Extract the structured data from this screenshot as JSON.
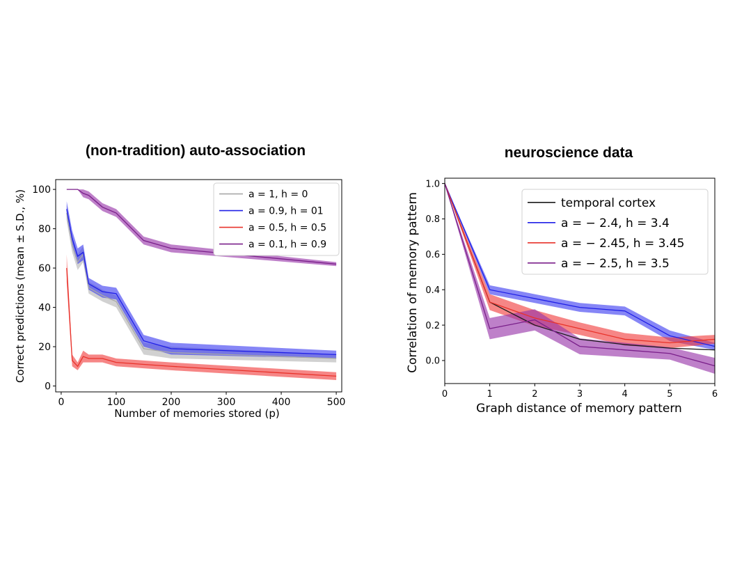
{
  "chart_data": [
    {
      "type": "line",
      "title": "(non-tradition) auto-association",
      "xlabel": "Number of memories stored (p)",
      "ylabel": "Correct predictions (mean ± S.D., %)",
      "xlim": [
        -10,
        510
      ],
      "ylim": [
        -3,
        105
      ],
      "xticks": [
        0,
        100,
        200,
        300,
        400,
        500
      ],
      "yticks": [
        0,
        20,
        40,
        60,
        80,
        100
      ],
      "legend_position": "top-right",
      "grid": false,
      "series": [
        {
          "name": "a = 1, h = 0",
          "color": "#a8a8a8",
          "band_color": "#b4b4b4",
          "x": [
            10,
            20,
            30,
            40,
            50,
            75,
            100,
            150,
            200,
            500
          ],
          "y": [
            88,
            72,
            63,
            67,
            50,
            46,
            43,
            19,
            17,
            14
          ],
          "sd": [
            4,
            4,
            4,
            4,
            3,
            3,
            3,
            3,
            3,
            2
          ]
        },
        {
          "name": "a = 0.9, h = 01",
          "color": "#1f1fe6",
          "band_color": "#3c3cf0",
          "x": [
            10,
            20,
            30,
            40,
            50,
            75,
            100,
            150,
            200,
            500
          ],
          "y": [
            90,
            75,
            66,
            68,
            52,
            48,
            47,
            23,
            19,
            16
          ],
          "sd": [
            4,
            4,
            4,
            4,
            3,
            3,
            3,
            3,
            3,
            2
          ]
        },
        {
          "name": "a = 0.5, h = 0.5",
          "color": "#e8322a",
          "band_color": "#f03c3c",
          "x": [
            10,
            20,
            30,
            40,
            50,
            75,
            100,
            150,
            200,
            500
          ],
          "y": [
            60,
            13,
            10,
            15,
            14,
            14,
            12,
            11,
            10,
            5
          ],
          "sd": [
            7,
            3,
            2,
            3,
            2,
            2,
            2,
            2,
            2,
            2
          ]
        },
        {
          "name": "a = 0.1, h = 0.9",
          "color": "#7a1f8a",
          "band_color": "#9632a8",
          "x": [
            10,
            20,
            30,
            40,
            50,
            75,
            100,
            150,
            200,
            500
          ],
          "y": [
            100,
            100,
            100,
            98,
            97,
            91,
            88,
            74,
            70,
            62
          ],
          "sd": [
            0,
            0,
            0,
            2,
            2,
            2,
            2,
            2,
            2,
            1
          ]
        }
      ]
    },
    {
      "type": "line",
      "title": "neuroscience data",
      "xlabel": "Graph distance of memory pattern",
      "ylabel": "Correlation of memory pattern",
      "xlim": [
        0,
        6
      ],
      "ylim": [
        -0.13,
        1.03
      ],
      "xticks": [
        0,
        1,
        2,
        3,
        4,
        5,
        6
      ],
      "yticks": [
        0.0,
        0.2,
        0.4,
        0.6,
        0.8,
        1.0
      ],
      "ytick_labels": [
        "0.0",
        "0.2",
        "0.4",
        "0.6",
        "0.8",
        "1.0"
      ],
      "legend_position": "top-right",
      "grid": false,
      "series": [
        {
          "name": "temporal cortex",
          "color": "#1a1a1a",
          "band_color": "#000000",
          "band_opacity": 0,
          "x": [
            0,
            1,
            2,
            3,
            4,
            5,
            6
          ],
          "y": [
            1.0,
            0.33,
            0.2,
            0.12,
            0.09,
            0.07,
            0.06
          ],
          "sd": [
            0,
            0,
            0,
            0,
            0,
            0,
            0
          ]
        },
        {
          "name": "a = − 2.4, h = 3.4",
          "color": "#1f1fe6",
          "band_color": "#3c3cf0",
          "x": [
            0,
            1,
            2,
            3,
            4,
            5,
            6
          ],
          "y": [
            1.0,
            0.4,
            0.35,
            0.3,
            0.28,
            0.14,
            0.08
          ],
          "sd": [
            0,
            0.025,
            0.025,
            0.025,
            0.025,
            0.03,
            0.02
          ]
        },
        {
          "name": "a = − 2.45, h = 3.45",
          "color": "#e8322a",
          "band_color": "#f03c3c",
          "x": [
            0,
            1,
            2,
            3,
            4,
            5,
            6
          ],
          "y": [
            1.0,
            0.33,
            0.24,
            0.18,
            0.12,
            0.1,
            0.12
          ],
          "sd": [
            0,
            0.045,
            0.045,
            0.035,
            0.035,
            0.03,
            0.025
          ]
        },
        {
          "name": "a = − 2.5, h = 3.5",
          "color": "#7a1f8a",
          "band_color": "#9632a8",
          "x": [
            0,
            1,
            2,
            3,
            4,
            5,
            6
          ],
          "y": [
            1.0,
            0.18,
            0.23,
            0.08,
            0.06,
            0.04,
            -0.03
          ],
          "sd": [
            0,
            0.06,
            0.06,
            0.045,
            0.04,
            0.035,
            0.045
          ]
        }
      ]
    }
  ]
}
